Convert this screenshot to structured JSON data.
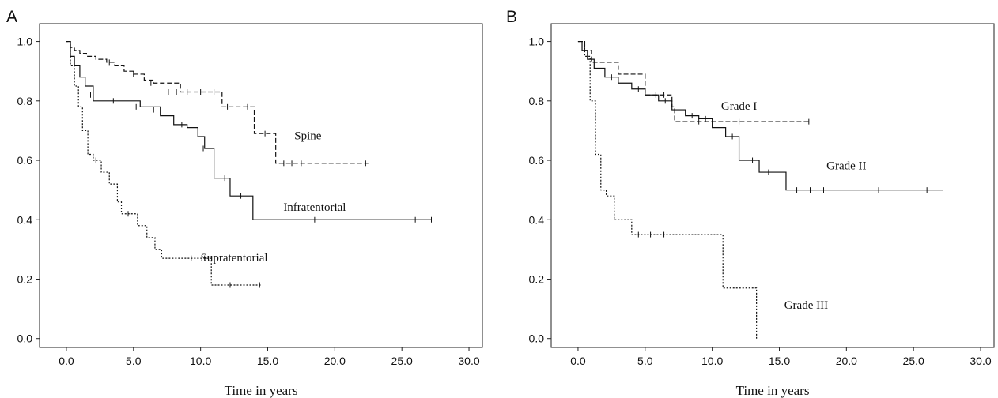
{
  "chart_data": [
    {
      "panel": "A",
      "type": "line",
      "xlabel": "Time in years",
      "ylabel": "",
      "xlim": [
        -2,
        31
      ],
      "ylim": [
        -0.03,
        1.06
      ],
      "xticks": [
        "0.0",
        "5.0",
        "10.0",
        "15.0",
        "20.0",
        "25.0",
        "30.0"
      ],
      "yticks": [
        "0.0",
        "0.2",
        "0.4",
        "0.6",
        "0.8",
        "1.0"
      ],
      "series": [
        {
          "name": "Spine",
          "style": "dashed",
          "label_at": [
            18,
            0.67
          ],
          "x": [
            0,
            0.3,
            0.6,
            1.0,
            1.5,
            2.2,
            3.0,
            3.6,
            4.3,
            5.0,
            5.8,
            6.5,
            7.2,
            8.5,
            10.5,
            11.6,
            13.0,
            14.0,
            15.6,
            22.5
          ],
          "y": [
            1.0,
            0.98,
            0.97,
            0.96,
            0.95,
            0.94,
            0.93,
            0.92,
            0.9,
            0.89,
            0.87,
            0.86,
            0.86,
            0.83,
            0.83,
            0.78,
            0.78,
            0.69,
            0.59,
            0.59
          ],
          "censored": [
            [
              3.2,
              0.93
            ],
            [
              5.0,
              0.89
            ],
            [
              6.3,
              0.86
            ],
            [
              7.6,
              0.83
            ],
            [
              8.2,
              0.83
            ],
            [
              9.0,
              0.83
            ],
            [
              10.0,
              0.83
            ],
            [
              11.0,
              0.83
            ],
            [
              12.0,
              0.78
            ],
            [
              13.5,
              0.78
            ],
            [
              14.8,
              0.69
            ],
            [
              16.2,
              0.59
            ],
            [
              16.8,
              0.59
            ],
            [
              17.5,
              0.59
            ],
            [
              22.3,
              0.59
            ]
          ]
        },
        {
          "name": "Infratentorial",
          "style": "solid",
          "label_at": [
            18.5,
            0.43
          ],
          "x": [
            0,
            0.3,
            0.6,
            1.0,
            1.4,
            2.0,
            3.0,
            4.0,
            5.5,
            7.0,
            8.0,
            9.0,
            9.8,
            10.3,
            11.0,
            12.2,
            13.9,
            27.2
          ],
          "y": [
            1.0,
            0.95,
            0.92,
            0.88,
            0.85,
            0.8,
            0.8,
            0.8,
            0.78,
            0.75,
            0.72,
            0.71,
            0.68,
            0.64,
            0.54,
            0.48,
            0.4,
            0.4
          ],
          "censored": [
            [
              1.8,
              0.82
            ],
            [
              3.5,
              0.8
            ],
            [
              5.2,
              0.78
            ],
            [
              6.5,
              0.77
            ],
            [
              8.6,
              0.72
            ],
            [
              10.2,
              0.64
            ],
            [
              11.8,
              0.54
            ],
            [
              13.0,
              0.48
            ],
            [
              18.5,
              0.4
            ],
            [
              26.0,
              0.4
            ],
            [
              27.2,
              0.4
            ]
          ]
        },
        {
          "name": "Supratentorial",
          "style": "dotted",
          "label_at": [
            12.5,
            0.26
          ],
          "x": [
            0,
            0.3,
            0.6,
            0.9,
            1.2,
            1.6,
            2.0,
            2.6,
            3.2,
            3.8,
            4.1,
            5.3,
            6.0,
            6.6,
            7.1,
            10.8,
            14.5
          ],
          "y": [
            1.0,
            0.92,
            0.85,
            0.78,
            0.7,
            0.62,
            0.6,
            0.56,
            0.52,
            0.46,
            0.42,
            0.38,
            0.34,
            0.3,
            0.27,
            0.18,
            0.18
          ],
          "censored": [
            [
              2.2,
              0.6
            ],
            [
              4.6,
              0.42
            ],
            [
              9.3,
              0.27
            ],
            [
              10.3,
              0.27
            ],
            [
              12.2,
              0.18
            ],
            [
              14.4,
              0.18
            ]
          ]
        }
      ]
    },
    {
      "panel": "B",
      "type": "line",
      "xlabel": "Time in years",
      "ylabel": "",
      "xlim": [
        -2,
        31
      ],
      "ylim": [
        -0.03,
        1.06
      ],
      "xticks": [
        "0.0",
        "5.0",
        "10.0",
        "15.0",
        "20.0",
        "25.0",
        "30.0"
      ],
      "yticks": [
        "0.0",
        "0.2",
        "0.4",
        "0.6",
        "0.8",
        "1.0"
      ],
      "series": [
        {
          "name": "Grade I",
          "style": "dashed",
          "label_at": [
            12,
            0.77
          ],
          "x": [
            0,
            0.5,
            1.0,
            3.0,
            5.0,
            7.0,
            7.2,
            17.3
          ],
          "y": [
            1.0,
            0.97,
            0.93,
            0.89,
            0.82,
            0.78,
            0.73,
            0.73
          ],
          "censored": [
            [
              5.8,
              0.82
            ],
            [
              6.4,
              0.82
            ],
            [
              9.0,
              0.73
            ],
            [
              12.0,
              0.73
            ],
            [
              17.2,
              0.73
            ]
          ]
        },
        {
          "name": "Grade II",
          "style": "solid",
          "label_at": [
            20,
            0.57
          ],
          "x": [
            0,
            0.3,
            0.7,
            1.2,
            2.0,
            3.0,
            4.0,
            5.0,
            6.0,
            7.0,
            8.0,
            9.0,
            10.0,
            11.0,
            12.0,
            13.5,
            15.5,
            27.2
          ],
          "y": [
            1.0,
            0.97,
            0.94,
            0.91,
            0.88,
            0.86,
            0.84,
            0.82,
            0.8,
            0.77,
            0.75,
            0.74,
            0.71,
            0.68,
            0.6,
            0.56,
            0.5,
            0.5
          ],
          "censored": [
            [
              2.5,
              0.88
            ],
            [
              4.5,
              0.84
            ],
            [
              6.5,
              0.8
            ],
            [
              8.5,
              0.75
            ],
            [
              9.5,
              0.74
            ],
            [
              11.5,
              0.68
            ],
            [
              13.0,
              0.6
            ],
            [
              14.2,
              0.56
            ],
            [
              16.3,
              0.5
            ],
            [
              17.3,
              0.5
            ],
            [
              18.3,
              0.5
            ],
            [
              22.4,
              0.5
            ],
            [
              26.0,
              0.5
            ],
            [
              27.2,
              0.5
            ]
          ]
        },
        {
          "name": "Grade III",
          "style": "dotted",
          "label_at": [
            17,
            0.1
          ],
          "x": [
            0,
            0.5,
            0.9,
            1.3,
            1.7,
            2.1,
            2.7,
            4.0,
            10.8,
            13.3,
            13.3
          ],
          "y": [
            1.0,
            0.95,
            0.8,
            0.62,
            0.5,
            0.48,
            0.4,
            0.35,
            0.17,
            0.17,
            0.0
          ],
          "censored": [
            [
              4.5,
              0.35
            ],
            [
              5.4,
              0.35
            ],
            [
              6.4,
              0.35
            ]
          ]
        }
      ]
    }
  ]
}
